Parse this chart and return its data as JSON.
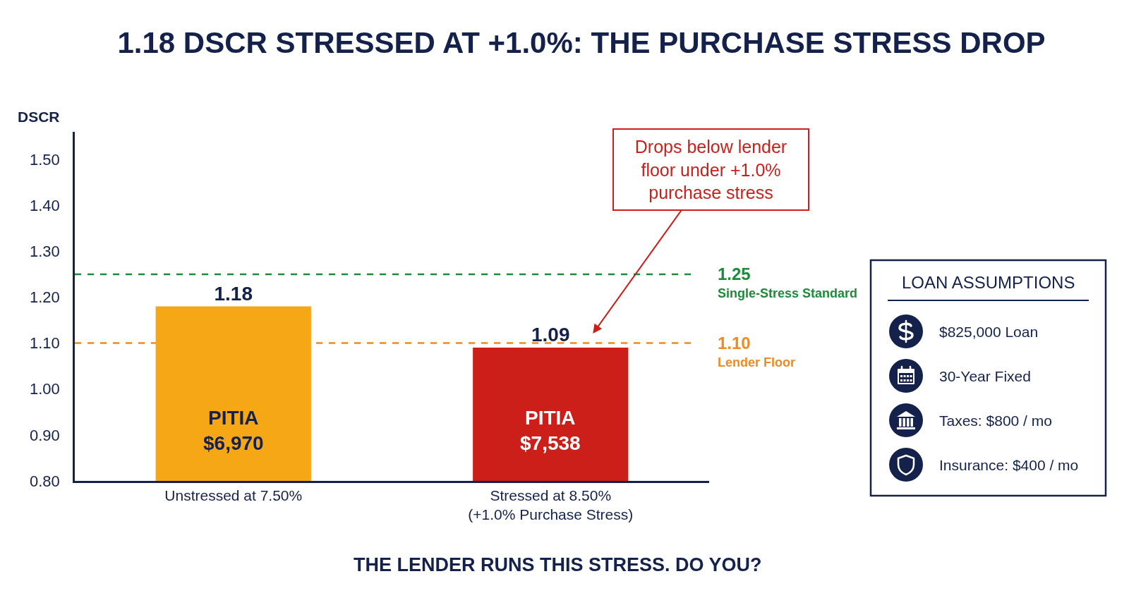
{
  "chart_data": [
    {
      "type": "bar",
      "title": "1.18 DSCR STRESSED AT +1.0%: THE PURCHASE STRESS DROP",
      "ylabel": "DSCR",
      "categories": [
        "Unstressed at 7.50%",
        "Stressed at 8.50%\n(+1.0% Purchase Stress)"
      ],
      "values": [
        1.18,
        1.09
      ],
      "colors": [
        "#f5a716",
        "#cc1f1a"
      ],
      "ylim": [
        0.8,
        1.56
      ],
      "yticks": [
        {
          "value": 0.8,
          "label": "0.80"
        },
        {
          "value": 0.9,
          "label": "0.90"
        },
        {
          "value": 1.0,
          "label": "1.00"
        },
        {
          "value": 1.1,
          "label": "1.10"
        },
        {
          "value": 1.2,
          "label": "1.20"
        },
        {
          "value": 1.3,
          "label": "1.30"
        },
        {
          "value": 1.4,
          "label": "1.40"
        },
        {
          "value": 1.5,
          "label": "1.50"
        }
      ],
      "data_labels": true,
      "ref_lines": [
        {
          "axis": "y",
          "value": 1.25,
          "label": "1.25\nSingle-Stress Standard",
          "color": "#1e8a3a",
          "line_style": "dashed"
        },
        {
          "axis": "y",
          "value": 1.1,
          "label": "1.10\nLender Floor",
          "color": "#f08a24",
          "line_style": "dashed"
        }
      ],
      "annotations": [
        "PITIA\n$6,970",
        "PITIA\n$7,538",
        "Drops below lender\nfloor under +1.0%\npurchase stress",
        "THE LENDER RUNS THIS STRESS. DO YOU?"
      ]
    },
    {
      "type": "other",
      "title": "LOAN ASSUMPTIONS",
      "annotations": [
        "$825,000 Loan",
        "30-Year Fixed",
        "Taxes: $800 / mo",
        "Insurance: $400 / mo"
      ]
    }
  ]
}
